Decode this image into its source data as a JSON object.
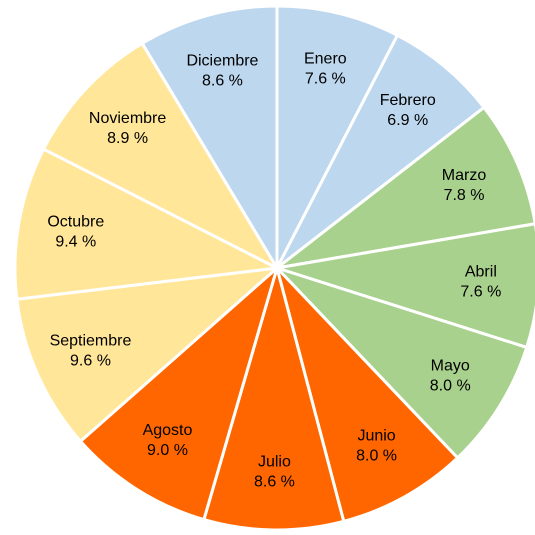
{
  "chart_data": {
    "type": "pie",
    "categories": [
      "Enero",
      "Febrero",
      "Marzo",
      "Abril",
      "Mayo",
      "Junio",
      "Julio",
      "Agosto",
      "Septiembre",
      "Octubre",
      "Noviembre",
      "Diciembre"
    ],
    "values": [
      7.6,
      6.9,
      7.8,
      7.6,
      8.0,
      8.0,
      8.6,
      9.0,
      9.6,
      9.4,
      8.9,
      8.6
    ],
    "value_labels": [
      "7.6 %",
      "6.9 %",
      "7.8 %",
      "7.6 %",
      "8.0 %",
      "8.0 %",
      "8.6 %",
      "9.0 %",
      "9.6 %",
      "9.4 %",
      "8.9 %",
      "8.6 %"
    ],
    "colors": [
      "#bdd7ee",
      "#bdd7ee",
      "#a9d18e",
      "#a9d18e",
      "#a9d18e",
      "#ff6600",
      "#ff6600",
      "#ff6600",
      "#ffe699",
      "#ffe699",
      "#ffe699",
      "#bdd7ee"
    ]
  }
}
